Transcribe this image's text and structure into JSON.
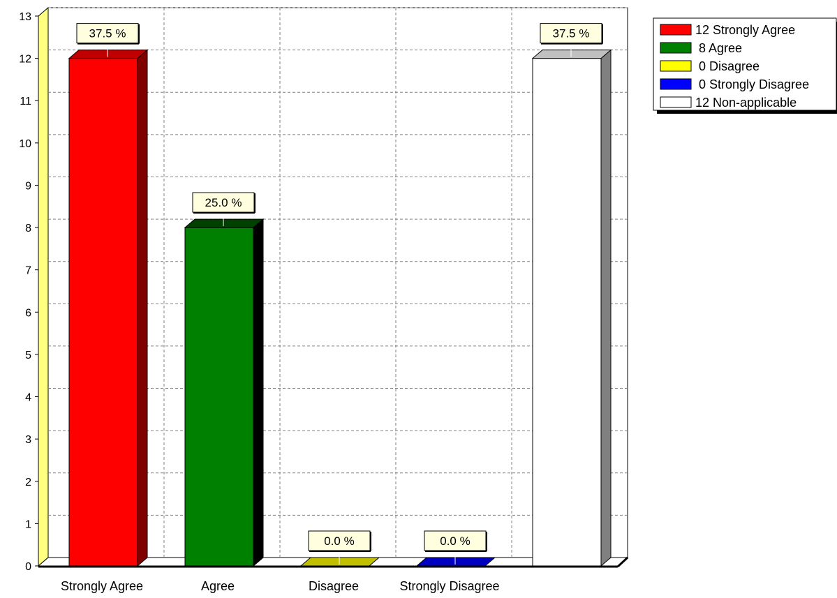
{
  "chart_data": {
    "type": "bar",
    "title": "",
    "xlabel": "",
    "ylabel": "",
    "categories": [
      "Strongly Agree",
      "Agree",
      "Disagree",
      "Strongly Disagree",
      ""
    ],
    "values": [
      12,
      8,
      0,
      0,
      12
    ],
    "percent_labels": [
      "37.5 %",
      "25.0 %",
      "0.0 %",
      "0.0 %",
      "37.5 %"
    ],
    "ylim": [
      0,
      13
    ],
    "yticks": [
      "0",
      "1",
      "2",
      "3",
      "4",
      "5",
      "6",
      "7",
      "8",
      "9",
      "10",
      "11",
      "12",
      "13"
    ],
    "grid": true,
    "legend_position": "top-right",
    "legend": [
      "12 Strongly Agree",
      " 8 Agree",
      " 0 Disagree",
      " 0 Strongly Disagree",
      "12 Non-applicable"
    ],
    "colors": {
      "front": [
        "#ff0000",
        "#008000",
        "#ffff00",
        "#0000ff",
        "#ffffff"
      ],
      "side": [
        "#800000",
        "#000000",
        "#808000",
        "#000080",
        "#808080"
      ],
      "top": [
        "#c00000",
        "#004000",
        "#c0c000",
        "#0000c0",
        "#c0c0c0"
      ],
      "left_wall": "#ffff80",
      "label_bg": "#ffffe0"
    }
  }
}
